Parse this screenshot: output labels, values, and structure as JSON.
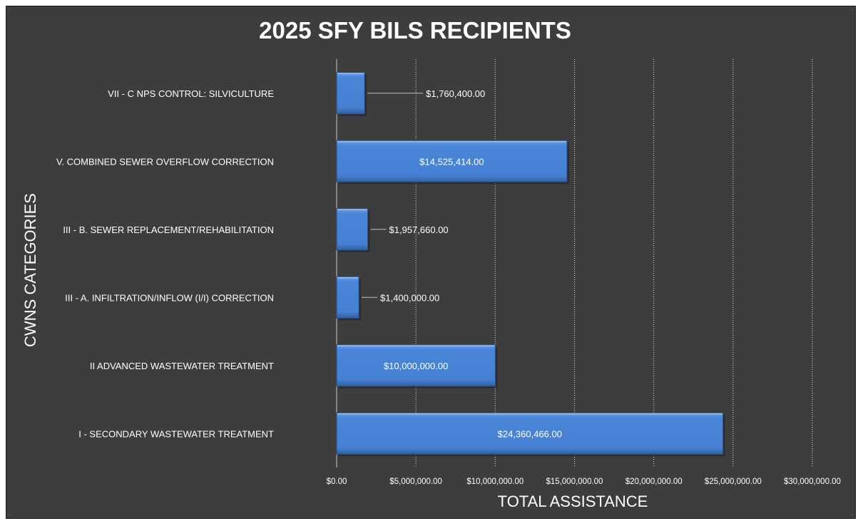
{
  "chart_data": {
    "type": "bar",
    "orientation": "horizontal",
    "title": "2025 SFY BILS RECIPIENTS",
    "xlabel": "TOTAL ASSISTANCE",
    "ylabel": "CWNS CATEGORIES",
    "xlim": [
      0,
      30000000
    ],
    "x_ticks": [
      0,
      5000000,
      10000000,
      15000000,
      20000000,
      25000000,
      30000000
    ],
    "x_tick_labels": [
      "$0.00",
      "$5,000,000.00",
      "$10,000,000.00",
      "$15,000,000.00",
      "$20,000,000.00",
      "$25,000,000.00",
      "$30,000,000.00"
    ],
    "categories": [
      "VII  - C NPS CONTROL: SILVICULTURE",
      "V. COMBINED SEWER OVERFLOW CORRECTION",
      "III  - B. SEWER REPLACEMENT/REHABILITATION",
      "III  - A. INFILTRATION/INFLOW (I/I) CORRECTION",
      "II ADVANCED WASTEWATER TREATMENT",
      "I  -  SECONDARY WASTEWATER TREATMENT"
    ],
    "values": [
      1760400,
      14525414,
      1957660,
      1400000,
      10000000,
      24360466
    ],
    "data_labels": [
      "$1,760,400.00",
      "$14,525,414.00",
      "$1,957,660.00",
      "$1,400,000.00",
      "$10,000,000.00",
      "$24,360,466.00"
    ],
    "grid": "vertical dotted",
    "legend": "none",
    "bar_color": "#4a86d8",
    "background_color": "#3d3d3d",
    "text_color": "#ffffff"
  }
}
